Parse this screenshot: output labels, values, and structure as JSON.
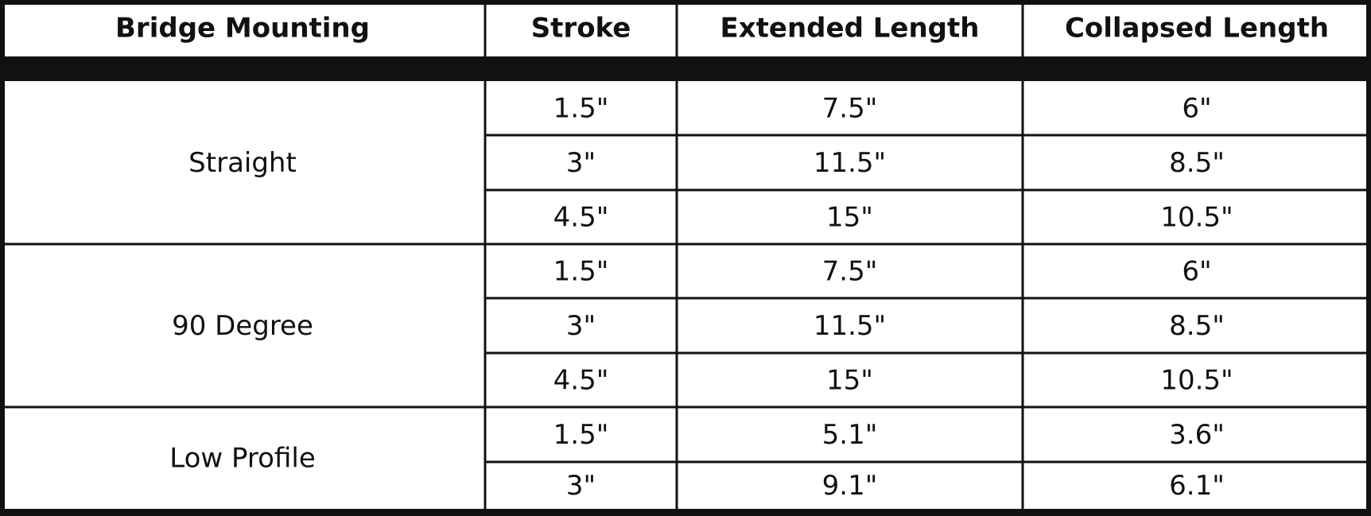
{
  "table": {
    "header": [
      "Bridge Mounting",
      "Stroke",
      "Extended Length",
      "Collapsed Length"
    ],
    "groups": [
      {
        "name": "Straight",
        "rows": [
          [
            "1.5\"",
            "7.5\"",
            "6\""
          ],
          [
            "3\"",
            "11.5\"",
            "8.5\""
          ],
          [
            "4.5\"",
            "15\"",
            "10.5\""
          ]
        ]
      },
      {
        "name": "90 Degree",
        "rows": [
          [
            "1.5\"",
            "7.5\"",
            "6\""
          ],
          [
            "3\"",
            "11.5\"",
            "8.5\""
          ],
          [
            "4.5\"",
            "15\"",
            "10.5\""
          ]
        ]
      },
      {
        "name": "Low Profile",
        "rows": [
          [
            "1.5\"",
            "5.1\"",
            "3.6\""
          ],
          [
            "3\"",
            "9.1\"",
            "6.1\""
          ]
        ]
      }
    ]
  }
}
